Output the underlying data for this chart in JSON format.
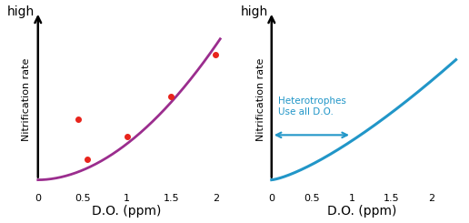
{
  "left_curve_color": "#9B2D8E",
  "right_curve_color": "#2196C8",
  "scatter_color": "#E8241C",
  "scatter_points": [
    [
      0.45,
      0.38
    ],
    [
      0.55,
      0.13
    ],
    [
      1.0,
      0.27
    ],
    [
      1.5,
      0.52
    ],
    [
      2.0,
      0.78
    ]
  ],
  "annotation_text": "Heterotrophes\nUse all D.O.",
  "annotation_color": "#2196C8",
  "xlabel": "D.O. (ppm)",
  "ylabel": "Nitrification rate",
  "high_label": "high",
  "background_color": "#ffffff",
  "xlabel_fontsize": 10,
  "ylabel_fontsize": 8,
  "high_fontsize": 10,
  "tick_fontsize": 8
}
